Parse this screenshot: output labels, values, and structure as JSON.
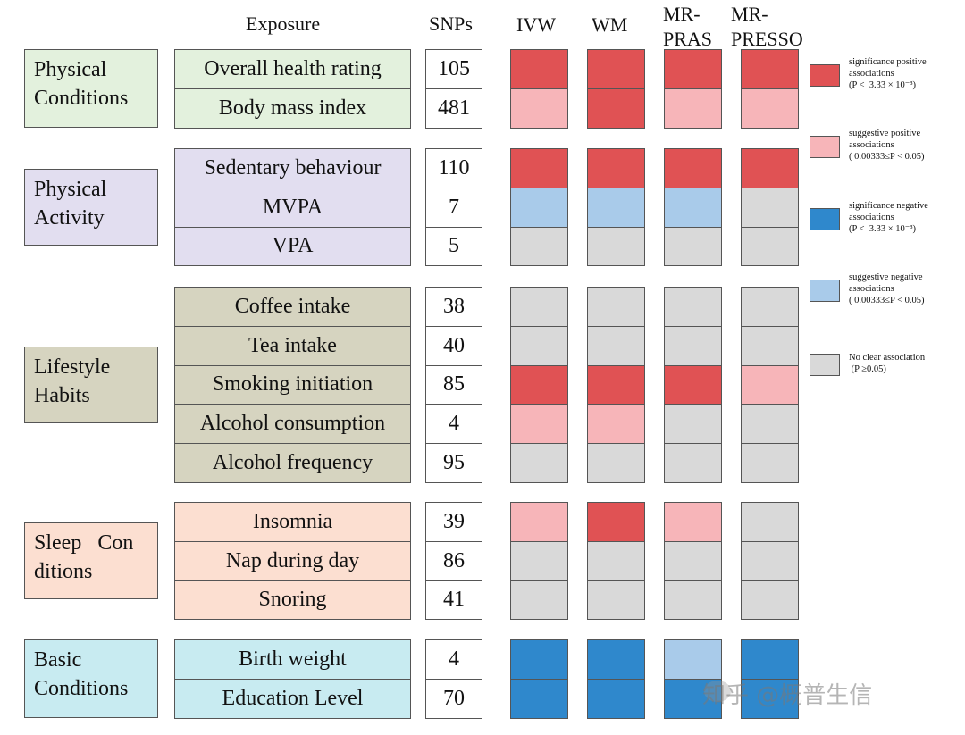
{
  "headers": {
    "exposure": "Exposure",
    "snps": "SNPs",
    "methods": [
      {
        "lines": [
          "IVW"
        ]
      },
      {
        "lines": [
          "WM"
        ]
      },
      {
        "lines": [
          "MR-",
          "PRAS"
        ]
      },
      {
        "lines": [
          "MR-",
          "PRESSO"
        ]
      }
    ]
  },
  "colors": {
    "sig_pos": "#e05254",
    "sug_pos": "#f7b5b9",
    "sig_neg": "#2f88cc",
    "sug_neg": "#a9cbea",
    "none": "#d9d9d9",
    "physical_conditions": "#e3f1dd",
    "physical_activity": "#e2def0",
    "lifestyle_habits": "#d6d4c0",
    "sleep_conditions": "#fcdfd1",
    "basic_conditions": "#c8ebf1"
  },
  "legend": [
    {
      "code": "sig_pos",
      "lines": [
        "significance positive",
        "associations",
        "(P <  3.33 × 10⁻³)"
      ]
    },
    {
      "code": "sug_pos",
      "lines": [
        "suggestive positive",
        "associations",
        "( 0.00333≤P < 0.05)"
      ]
    },
    {
      "code": "sig_neg",
      "lines": [
        "significance negative",
        "associations",
        "(P <  3.33 × 10⁻³)"
      ]
    },
    {
      "code": "sug_neg",
      "lines": [
        "suggestive negative",
        "associations",
        "( 0.00333≤P < 0.05)"
      ]
    },
    {
      "code": "none",
      "lines": [
        "No clear association",
        " (P ≥0.05)"
      ]
    }
  ],
  "chart_data": {
    "type": "heatmap",
    "title": "",
    "columns": [
      "IVW",
      "WM",
      "MR-PRAS",
      "MR-PRESSO"
    ],
    "groups": [
      {
        "name": "Physical Conditions",
        "lines": [
          "Physical",
          "Conditions"
        ],
        "color": "physical_conditions",
        "rows": [
          {
            "exposure": "Overall health rating",
            "snps": "105",
            "cells": [
              "sig_pos",
              "sig_pos",
              "sig_pos",
              "sig_pos"
            ]
          },
          {
            "exposure": "Body mass index",
            "snps": "481",
            "cells": [
              "sug_pos",
              "sig_pos",
              "sug_pos",
              "sug_pos"
            ]
          }
        ]
      },
      {
        "name": "Physical Activity",
        "lines": [
          "Physical",
          "Activity"
        ],
        "color": "physical_activity",
        "rows": [
          {
            "exposure": "Sedentary behaviour",
            "snps": "110",
            "cells": [
              "sig_pos",
              "sig_pos",
              "sig_pos",
              "sig_pos"
            ]
          },
          {
            "exposure": "MVPA",
            "snps": "7",
            "cells": [
              "sug_neg",
              "sug_neg",
              "sug_neg",
              "none"
            ]
          },
          {
            "exposure": "VPA",
            "snps": "5",
            "cells": [
              "none",
              "none",
              "none",
              "none"
            ]
          }
        ]
      },
      {
        "name": "Lifestyle Habits",
        "lines": [
          "Lifestyle",
          "Habits"
        ],
        "color": "lifestyle_habits",
        "rows": [
          {
            "exposure": "Coffee intake",
            "snps": "38",
            "cells": [
              "none",
              "none",
              "none",
              "none"
            ]
          },
          {
            "exposure": "Tea intake",
            "snps": "40",
            "cells": [
              "none",
              "none",
              "none",
              "none"
            ]
          },
          {
            "exposure": "Smoking initiation",
            "snps": "85",
            "cells": [
              "sig_pos",
              "sig_pos",
              "sig_pos",
              "sug_pos"
            ]
          },
          {
            "exposure": "Alcohol consumption",
            "snps": "4",
            "cells": [
              "sug_pos",
              "sug_pos",
              "none",
              "none"
            ]
          },
          {
            "exposure": "Alcohol frequency",
            "snps": "95",
            "cells": [
              "none",
              "none",
              "none",
              "none"
            ]
          }
        ]
      },
      {
        "name": "Sleep Conditions",
        "lines": [
          "Sleep   Con",
          "ditions"
        ],
        "color": "sleep_conditions",
        "rows": [
          {
            "exposure": "Insomnia",
            "snps": "39",
            "cells": [
              "sug_pos",
              "sig_pos",
              "sug_pos",
              "none"
            ]
          },
          {
            "exposure": "Nap during day",
            "snps": "86",
            "cells": [
              "none",
              "none",
              "none",
              "none"
            ]
          },
          {
            "exposure": "Snoring",
            "snps": "41",
            "cells": [
              "none",
              "none",
              "none",
              "none"
            ]
          }
        ]
      },
      {
        "name": "Basic Conditions",
        "lines": [
          "Basic",
          "Conditions"
        ],
        "color": "basic_conditions",
        "rows": [
          {
            "exposure": "Birth weight",
            "snps": "4",
            "cells": [
              "sig_neg",
              "sig_neg",
              "sug_neg",
              "sig_neg"
            ]
          },
          {
            "exposure": "Education Level",
            "snps": "70",
            "cells": [
              "sig_neg",
              "sig_neg",
              "sig_neg",
              "sig_neg"
            ]
          }
        ]
      }
    ]
  },
  "watermark": "知乎 @概普生信"
}
